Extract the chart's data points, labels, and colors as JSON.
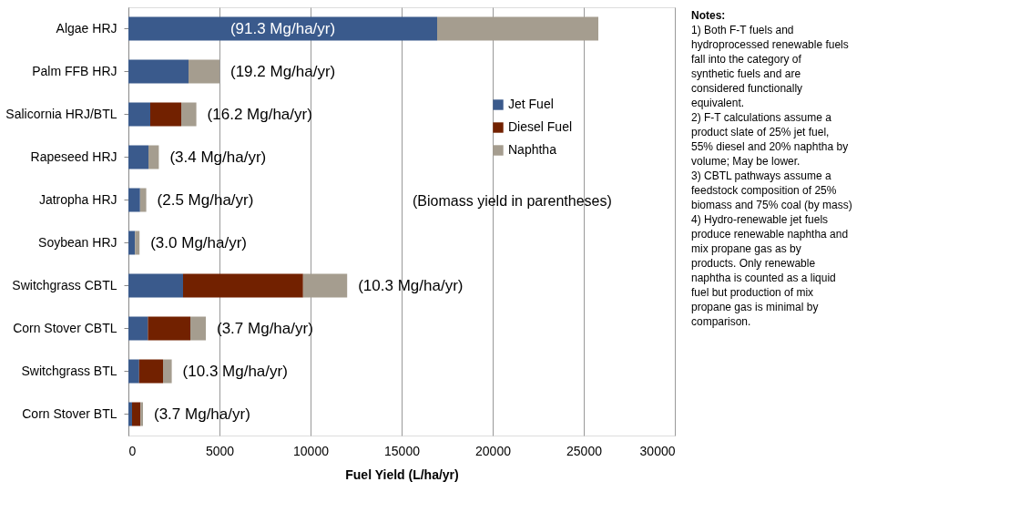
{
  "chart_data": {
    "type": "bar",
    "orientation": "horizontal",
    "stacked": true,
    "categories": [
      "Algae HRJ",
      "Palm FFB HRJ",
      "Salicornia HRJ/BTL",
      "Rapeseed HRJ",
      "Jatropha HRJ",
      "Soybean HRJ",
      "Switchgrass CBTL",
      "Corn Stover CBTL",
      "Switchgrass BTL",
      "Corn Stover BTL"
    ],
    "series": [
      {
        "name": "Jet Fuel",
        "color": "#3a5a8c",
        "values": [
          16950,
          3300,
          1200,
          1100,
          640,
          360,
          3000,
          1070,
          590,
          200
        ]
      },
      {
        "name": "Diesel Fuel",
        "color": "#722100",
        "values": [
          null,
          null,
          1700,
          null,
          null,
          null,
          6590,
          2330,
          1310,
          460
        ]
      },
      {
        "name": "Naphtha",
        "color": "#a59d8f",
        "values": [
          8850,
          1700,
          830,
          570,
          340,
          250,
          2420,
          850,
          480,
          140
        ]
      }
    ],
    "xlim": [
      0,
      30000
    ],
    "xticks": [
      0,
      5000,
      10000,
      15000,
      20000,
      25000,
      30000
    ],
    "xlabel": "Fuel Yield (L/ha/yr)",
    "grid": "x",
    "legend": "right",
    "annotations": [
      "(91.3 Mg/ha/yr)",
      {
        "text": "(19.2 Mg/ha/yr)",
        "x": 5000,
        "y": "Palm FFB HRJ"
      },
      {
        "text": "(16.2 Mg/ha/yr)",
        "x": 3730,
        "y": "Salicornia HRJ/BTL"
      },
      {
        "text": "(3.4 Mg/ha/yr)",
        "x": 1670,
        "y": "Rapeseed HRJ"
      },
      {
        "text": "(2.5 Mg/ha/yr)",
        "x": 980,
        "y": "Jatropha HRJ"
      },
      {
        "text": "(3.0 Mg/ha/yr)",
        "x": 610,
        "y": "Soybean HRJ"
      },
      {
        "text": "(10.3 Mg/ha/yr)",
        "x": 12010,
        "y": "Switchgrass CBTL"
      },
      {
        "text": "(3.7 Mg/ha/yr)",
        "x": 4250,
        "y": "Corn Stover CBTL"
      },
      {
        "text": "(10.3 Mg/ha/yr)",
        "x": 2380,
        "y": "Switchgrass BTL"
      },
      {
        "text": "(3.7 Mg/ha/yr)",
        "x": 800,
        "y": "Corn Stover BTL"
      },
      "(Biomass yield in parentheses)",
      "Notes:",
      "1) Both F-T fuels and hydroprocessed renewable fuels fall into the category of synthetic fuels and are considered functionally equivalent.",
      "2) F-T calculations assume a product slate of 25% jet fuel, 55% diesel and 20% naphtha by volume; May be lower.",
      "3) CBTL pathways assume a feedstock composition of 25% biomass and 75% coal (by mass)",
      "4) Hydro-renewable jet fuels produce renewable naphtha and mix propane gas as by products.  Only renewable naphtha is counted as a liquid fuel but production of mix propane gas is minimal by comparison."
    ]
  }
}
